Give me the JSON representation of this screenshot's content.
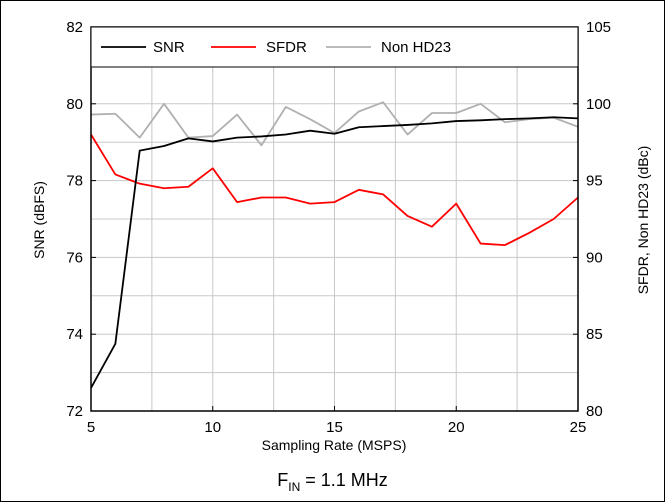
{
  "chart_data": {
    "type": "line",
    "title": "",
    "xlabel": "Sampling Rate (MSPS)",
    "ylabel_left": "SNR (dBFS)",
    "ylabel_right": "SFDR, Non HD23 (dBc)",
    "xlim": [
      5,
      25
    ],
    "ylim_left": [
      72,
      82
    ],
    "ylim_right": [
      80,
      105
    ],
    "x_ticks": [
      5,
      10,
      15,
      20,
      25
    ],
    "y_left_ticks": [
      72,
      74,
      76,
      78,
      80,
      82
    ],
    "y_right_ticks": [
      80,
      85,
      90,
      95,
      100,
      105
    ],
    "grid": true,
    "legend_placement": "top-left",
    "x": [
      5,
      6,
      7,
      8,
      9,
      10,
      11,
      12,
      13,
      14,
      15,
      16,
      17,
      18,
      19,
      20,
      21,
      22,
      23,
      24,
      25
    ],
    "series": [
      {
        "name": "SNR",
        "axis": "left",
        "color": "#000000",
        "values": [
          72.6,
          73.75,
          78.78,
          78.9,
          79.1,
          79.02,
          79.12,
          79.15,
          79.2,
          79.3,
          79.22,
          79.39,
          79.42,
          79.45,
          79.49,
          79.55,
          79.57,
          79.6,
          79.62,
          79.65,
          79.62
        ]
      },
      {
        "name": "SFDR",
        "axis": "left_scaled_right",
        "color": "#ff0000",
        "values": [
          98.0,
          95.4,
          94.8,
          94.5,
          94.6,
          95.8,
          93.6,
          93.9,
          93.9,
          93.5,
          93.6,
          94.4,
          94.1,
          92.7,
          92.0,
          93.5,
          90.9,
          90.8,
          91.6,
          92.5,
          93.9
        ]
      },
      {
        "name": "Non HD23",
        "axis": "right",
        "color": "#b0b0b0",
        "values": [
          99.3,
          99.35,
          97.8,
          100.0,
          97.8,
          97.9,
          99.3,
          97.3,
          99.8,
          99.0,
          98.1,
          99.5,
          100.1,
          98.0,
          99.4,
          99.4,
          100.0,
          98.8,
          99.0,
          99.1,
          98.5
        ]
      }
    ]
  },
  "caption": {
    "main": "F",
    "sub": "IN",
    "rest": " = 1.1 MHz"
  }
}
